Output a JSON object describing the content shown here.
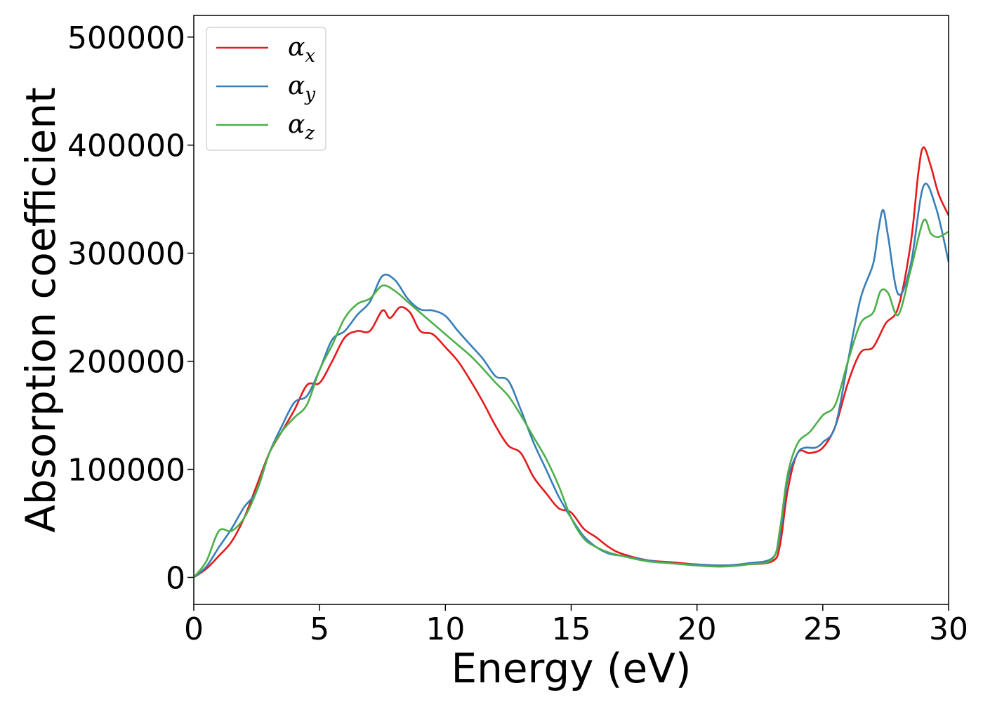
{
  "chart_data": {
    "type": "line",
    "title": "",
    "xlabel": "Energy (eV)",
    "ylabel": "Absorption coefficient",
    "xlim": [
      0,
      30
    ],
    "ylim": [
      -25000,
      520000
    ],
    "x_ticks": [
      0,
      5,
      10,
      15,
      20,
      25,
      30
    ],
    "y_ticks": [
      0,
      100000,
      200000,
      300000,
      400000,
      500000
    ],
    "x_tick_labels": [
      "0",
      "5",
      "10",
      "15",
      "20",
      "25",
      "30"
    ],
    "y_tick_labels": [
      "0",
      "100000",
      "200000",
      "300000",
      "400000",
      "500000"
    ],
    "grid": false,
    "legend_position": "top-left",
    "series": [
      {
        "name": "α",
        "subscript": "x",
        "color": "#e41a1c",
        "x": [
          0,
          0.5,
          1,
          1.5,
          2,
          2.5,
          3,
          3.5,
          4,
          4.5,
          5,
          5.5,
          6,
          6.5,
          7,
          7.5,
          7.8,
          8.2,
          8.6,
          9,
          9.5,
          10,
          10.5,
          11,
          11.5,
          12,
          12.5,
          13,
          13.5,
          14,
          14.5,
          15,
          15.5,
          16,
          16.5,
          17,
          18,
          19,
          20,
          21,
          22,
          23,
          23.3,
          23.6,
          24,
          24.5,
          25,
          25.5,
          26,
          26.5,
          27,
          27.5,
          28,
          28.5,
          28.8,
          29,
          29.3,
          29.6,
          30
        ],
        "y": [
          0,
          8000,
          20000,
          33000,
          55000,
          85000,
          115000,
          135000,
          155000,
          178000,
          180000,
          200000,
          222000,
          228000,
          228000,
          247000,
          240000,
          250000,
          245000,
          228000,
          225000,
          213000,
          200000,
          182000,
          162000,
          140000,
          122000,
          115000,
          93000,
          78000,
          64000,
          60000,
          45000,
          37000,
          28000,
          22000,
          16000,
          14000,
          12000,
          11000,
          12000,
          15000,
          30000,
          80000,
          115000,
          115000,
          120000,
          140000,
          180000,
          208000,
          213000,
          235000,
          250000,
          310000,
          375000,
          398000,
          380000,
          355000,
          335000
        ]
      },
      {
        "name": "α",
        "subscript": "y",
        "color": "#377eb8",
        "x": [
          0,
          0.5,
          1,
          1.5,
          2,
          2.5,
          3,
          3.5,
          4,
          4.5,
          5,
          5.5,
          6,
          6.5,
          7,
          7.5,
          8,
          8.5,
          9,
          9.5,
          10,
          10.5,
          11,
          11.5,
          12,
          12.5,
          13,
          13.5,
          14,
          14.5,
          15,
          15.5,
          16,
          16.5,
          17,
          18,
          19,
          20,
          21,
          22,
          23,
          23.3,
          23.6,
          24,
          24.3,
          24.7,
          25,
          25.5,
          26,
          26.5,
          27,
          27.2,
          27.4,
          27.6,
          28,
          28.5,
          29,
          29.5,
          30
        ],
        "y": [
          0,
          10000,
          28000,
          45000,
          65000,
          80000,
          115000,
          140000,
          162000,
          168000,
          192000,
          220000,
          228000,
          243000,
          255000,
          279000,
          275000,
          258000,
          248000,
          247000,
          242000,
          228000,
          215000,
          202000,
          186000,
          182000,
          155000,
          125000,
          100000,
          75000,
          55000,
          38000,
          28000,
          22000,
          20000,
          16000,
          13000,
          12000,
          11000,
          13000,
          18000,
          40000,
          90000,
          115000,
          120000,
          120000,
          125000,
          140000,
          200000,
          258000,
          290000,
          320000,
          340000,
          315000,
          262000,
          290000,
          362000,
          342000,
          292000
        ]
      },
      {
        "name": "α",
        "subscript": "z",
        "color": "#4daf4a",
        "x": [
          0,
          0.5,
          1,
          1.5,
          2,
          2.5,
          3,
          3.5,
          4,
          4.5,
          5,
          5.5,
          6,
          6.5,
          7,
          7.5,
          8,
          8.5,
          9,
          9.5,
          10,
          10.5,
          11,
          11.5,
          12,
          12.5,
          13,
          13.5,
          14,
          14.5,
          15,
          15.5,
          16,
          16.5,
          17,
          18,
          19,
          20,
          21,
          22,
          23,
          23.3,
          23.6,
          24,
          24.5,
          25,
          25.5,
          26,
          26.5,
          27,
          27.3,
          27.6,
          28,
          28.5,
          29,
          29.3,
          29.6,
          30
        ],
        "y": [
          0,
          15000,
          43000,
          43000,
          55000,
          80000,
          115000,
          135000,
          148000,
          160000,
          192000,
          215000,
          240000,
          253000,
          258000,
          270000,
          265000,
          255000,
          245000,
          235000,
          225000,
          215000,
          205000,
          193000,
          180000,
          168000,
          150000,
          130000,
          110000,
          85000,
          55000,
          36000,
          28000,
          23000,
          20000,
          15000,
          13000,
          11000,
          10000,
          12000,
          17000,
          45000,
          95000,
          124000,
          135000,
          150000,
          160000,
          200000,
          235000,
          245000,
          265000,
          263000,
          243000,
          285000,
          330000,
          318000,
          315000,
          320000
        ]
      }
    ]
  }
}
